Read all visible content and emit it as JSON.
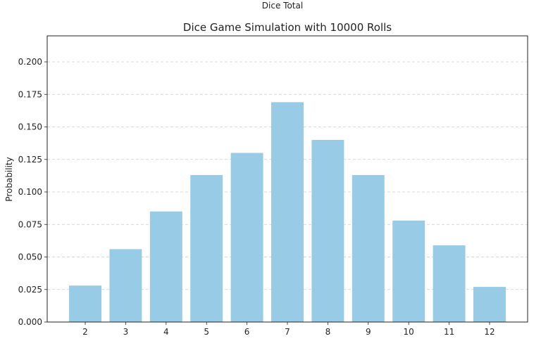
{
  "chart_data": {
    "type": "bar",
    "title": "Dice Game Simulation with 10000 Rolls",
    "xlabel": "Dice Total",
    "ylabel": "Probability",
    "categories": [
      "2",
      "3",
      "4",
      "5",
      "6",
      "7",
      "8",
      "9",
      "10",
      "11",
      "12"
    ],
    "values": [
      0.028,
      0.056,
      0.085,
      0.113,
      0.13,
      0.169,
      0.14,
      0.113,
      0.078,
      0.059,
      0.027
    ],
    "ylim": [
      0,
      0.22
    ],
    "yticks": [
      "0.000",
      "0.025",
      "0.050",
      "0.075",
      "0.100",
      "0.125",
      "0.150",
      "0.175",
      "0.200"
    ],
    "grid": "horizontal-dashed",
    "bar_color": "#97cbe6",
    "grid_color": "#cccccc"
  }
}
